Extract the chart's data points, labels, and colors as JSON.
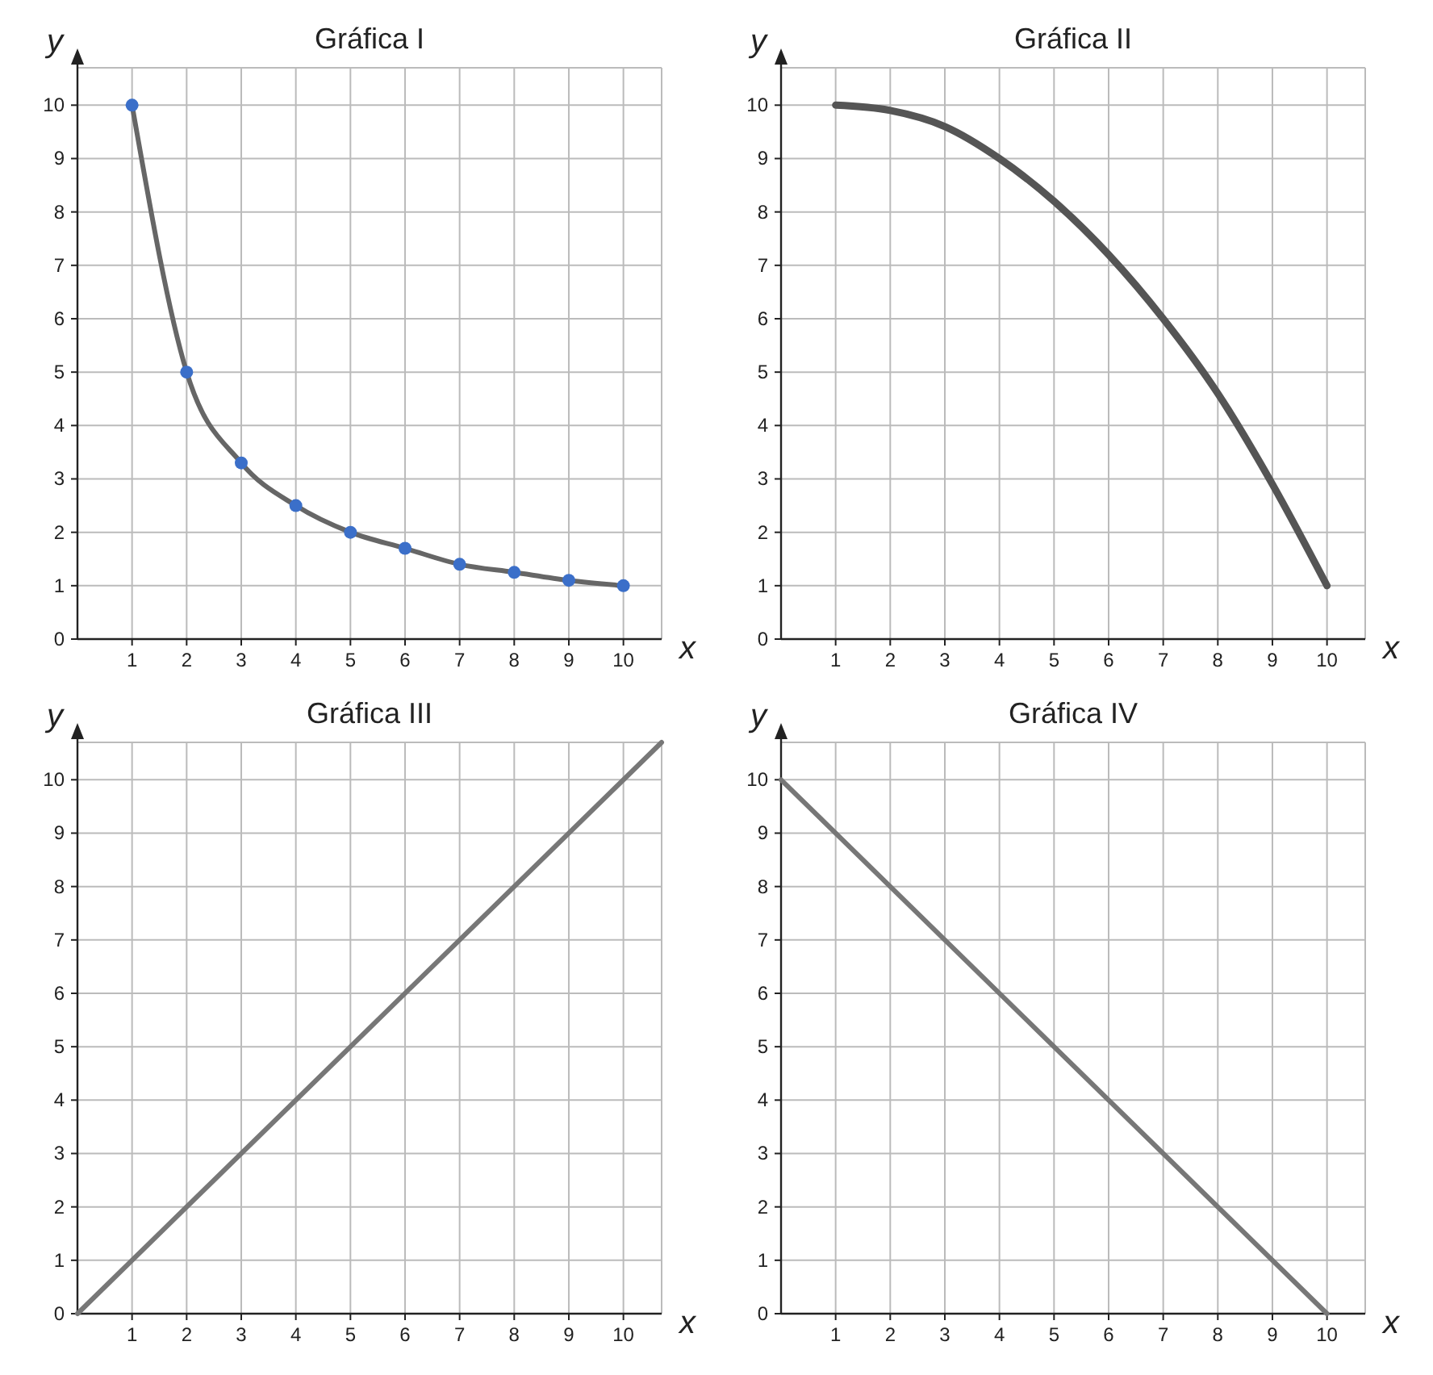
{
  "chart_data": [
    {
      "type": "line",
      "title": "Gráfica I",
      "xlabel": "x",
      "ylabel": "y",
      "xlim": [
        0,
        10.7
      ],
      "ylim": [
        0,
        10.7
      ],
      "xticks": [
        1,
        2,
        3,
        4,
        5,
        6,
        7,
        8,
        9,
        10
      ],
      "yticks": [
        0,
        1,
        2,
        3,
        4,
        5,
        6,
        7,
        8,
        9,
        10
      ],
      "grid": true,
      "x": [
        1,
        2,
        3,
        4,
        5,
        6,
        7,
        8,
        9,
        10
      ],
      "series": [
        {
          "type": "line",
          "color": "#666666",
          "values": [
            10,
            5,
            3.3,
            2.5,
            2,
            1.7,
            1.4,
            1.25,
            1.1,
            1
          ]
        },
        {
          "type": "scatter",
          "color": "#3b6fc9",
          "marker": "circle",
          "values": [
            10,
            5,
            3.3,
            2.5,
            2,
            1.7,
            1.4,
            1.25,
            1.1,
            1
          ]
        }
      ]
    },
    {
      "type": "line",
      "title": "Gráfica II",
      "xlabel": "x",
      "ylabel": "y",
      "xlim": [
        0,
        10.7
      ],
      "ylim": [
        0,
        10.7
      ],
      "xticks": [
        1,
        2,
        3,
        4,
        5,
        6,
        7,
        8,
        9,
        10
      ],
      "yticks": [
        0,
        1,
        2,
        3,
        4,
        5,
        6,
        7,
        8,
        9,
        10
      ],
      "grid": true,
      "x": [
        1,
        2,
        3,
        4,
        5,
        6,
        7,
        8,
        9,
        10
      ],
      "series": [
        {
          "color": "#555555",
          "values": [
            10,
            9.9,
            9.6,
            9,
            8.2,
            7.2,
            6,
            4.6,
            2.9,
            1
          ]
        }
      ]
    },
    {
      "type": "line",
      "title": "Gráfica III",
      "xlabel": "x",
      "ylabel": "y",
      "xlim": [
        0,
        10.7
      ],
      "ylim": [
        0,
        10.7
      ],
      "xticks": [
        1,
        2,
        3,
        4,
        5,
        6,
        7,
        8,
        9,
        10
      ],
      "yticks": [
        0,
        1,
        2,
        3,
        4,
        5,
        6,
        7,
        8,
        9,
        10
      ],
      "grid": true,
      "x": [
        0,
        10.7
      ],
      "series": [
        {
          "color": "#777777",
          "values": [
            0,
            10.7
          ]
        }
      ]
    },
    {
      "type": "line",
      "title": "Gráfica IV",
      "xlabel": "x",
      "ylabel": "y",
      "xlim": [
        0,
        10.7
      ],
      "ylim": [
        0,
        10.7
      ],
      "xticks": [
        1,
        2,
        3,
        4,
        5,
        6,
        7,
        8,
        9,
        10
      ],
      "yticks": [
        0,
        1,
        2,
        3,
        4,
        5,
        6,
        7,
        8,
        9,
        10
      ],
      "grid": true,
      "x": [
        0,
        10
      ],
      "series": [
        {
          "color": "#777777",
          "values": [
            10,
            0
          ]
        }
      ]
    }
  ]
}
